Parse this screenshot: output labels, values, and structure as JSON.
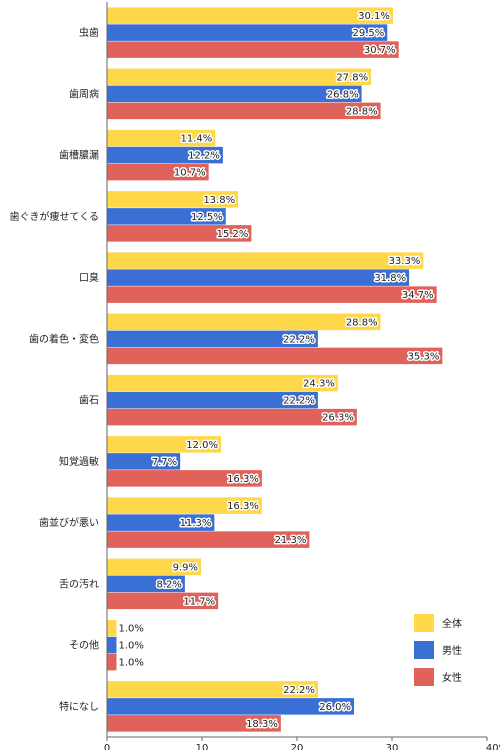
{
  "chart_data": {
    "type": "bar",
    "orientation": "horizontal",
    "unit": "%",
    "categories": [
      "虫歯",
      "歯周病",
      "歯槽膿漏",
      "歯ぐきが痩せてくる",
      "口臭",
      "歯の着色・変色",
      "歯石",
      "知覚過敏",
      "歯並びが悪い",
      "舌の汚れ",
      "その他",
      "特になし"
    ],
    "series": [
      {
        "name": "全体",
        "color": "#FFD84A",
        "values": [
          30.1,
          27.8,
          11.4,
          13.8,
          33.3,
          28.8,
          24.3,
          12.0,
          16.3,
          9.9,
          1.0,
          22.2
        ]
      },
      {
        "name": "男性",
        "color": "#3A6FD6",
        "values": [
          29.5,
          26.8,
          12.2,
          12.5,
          31.8,
          22.2,
          22.2,
          7.7,
          11.3,
          8.2,
          1.0,
          26.0
        ]
      },
      {
        "name": "女性",
        "color": "#E0625A",
        "values": [
          30.7,
          28.8,
          10.7,
          15.2,
          34.7,
          35.3,
          26.3,
          16.3,
          21.3,
          11.7,
          1.0,
          18.3
        ]
      }
    ],
    "x_ticks": [
      "0",
      "10",
      "20",
      "30",
      "40%"
    ],
    "xlim": [
      0,
      40
    ],
    "grid": false,
    "legend_position": "bottom-right"
  }
}
